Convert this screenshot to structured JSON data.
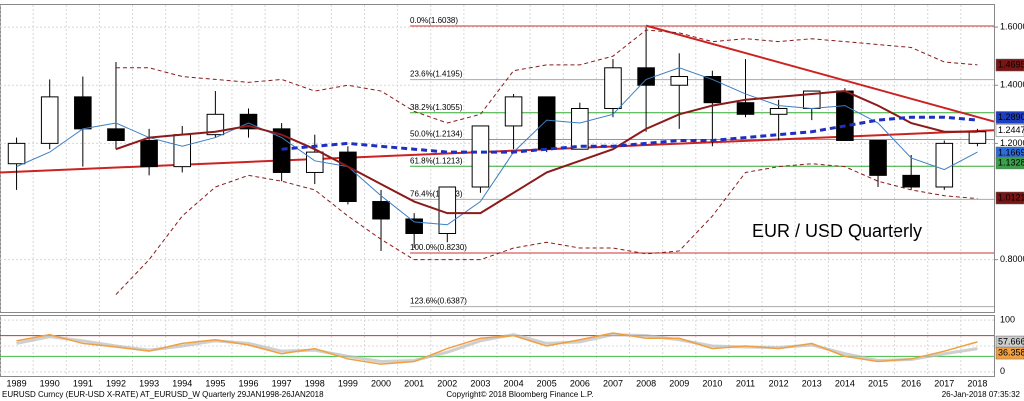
{
  "chart_data": {
    "type": "candlestick",
    "annotation": "EUR / USD Quarterly",
    "footer_left": "EURUSD Curncy (EUR-USD X-RATE) AT_EURUSD_W  Quarterly 29JAN1998-26JAN2018",
    "footer_center": "Copyright© 2018 Bloomberg Finance L.P.",
    "footer_right": "26-Jan-2018 07:35:32",
    "x": [
      1989,
      1990,
      1991,
      1992,
      1993,
      1994,
      1995,
      1996,
      1997,
      1998,
      1999,
      2000,
      2001,
      2002,
      2003,
      2004,
      2005,
      2006,
      2007,
      2008,
      2009,
      2010,
      2011,
      2012,
      2013,
      2014,
      2015,
      2016,
      2017,
      2018
    ],
    "xlim": [
      1988.5,
      2018.5
    ],
    "ylim": [
      0.62,
      1.676
    ],
    "yticks": [
      {
        "value": 0.8,
        "label": "0.8000"
      },
      {
        "value": 1.2,
        "label": "1.2000"
      },
      {
        "value": 1.4,
        "label": "1.4000"
      },
      {
        "value": 1.6,
        "label": "1.6000"
      }
    ],
    "grid": true,
    "open": [
      1.13,
      1.2,
      1.36,
      1.25,
      1.21,
      1.12,
      1.23,
      1.3,
      1.25,
      1.1,
      1.17,
      1.0,
      0.94,
      0.89,
      1.05,
      1.26,
      1.36,
      1.18,
      1.32,
      1.46,
      1.4,
      1.43,
      1.34,
      1.3,
      1.32,
      1.38,
      1.21,
      1.09,
      1.05,
      1.2
    ],
    "high": [
      1.22,
      1.42,
      1.43,
      1.48,
      1.25,
      1.26,
      1.38,
      1.32,
      1.27,
      1.23,
      1.19,
      1.04,
      0.96,
      1.05,
      1.26,
      1.37,
      1.36,
      1.34,
      1.49,
      1.6,
      1.51,
      1.45,
      1.49,
      1.35,
      1.38,
      1.39,
      1.21,
      1.16,
      1.21,
      1.25
    ],
    "low": [
      1.04,
      1.18,
      1.12,
      1.18,
      1.09,
      1.1,
      1.22,
      1.22,
      1.07,
      1.06,
      0.99,
      0.83,
      0.84,
      0.86,
      1.03,
      1.18,
      1.17,
      1.18,
      1.29,
      1.24,
      1.25,
      1.19,
      1.29,
      1.21,
      1.28,
      1.21,
      1.05,
      1.04,
      1.04,
      1.19
    ],
    "close": [
      1.2,
      1.36,
      1.25,
      1.21,
      1.12,
      1.23,
      1.3,
      1.25,
      1.1,
      1.17,
      1.0,
      0.94,
      0.89,
      1.05,
      1.26,
      1.36,
      1.18,
      1.32,
      1.46,
      1.4,
      1.43,
      1.34,
      1.3,
      1.32,
      1.38,
      1.21,
      1.09,
      1.05,
      1.2,
      1.24
    ],
    "series": [
      {
        "color": "#3b7fc4",
        "dash": false,
        "width": 1,
        "values": [
          1.12,
          1.17,
          1.25,
          1.27,
          1.22,
          1.19,
          1.22,
          1.27,
          1.22,
          1.14,
          1.12,
          1.02,
          0.93,
          0.92,
          1.0,
          1.17,
          1.28,
          1.27,
          1.3,
          1.42,
          1.46,
          1.42,
          1.37,
          1.33,
          1.32,
          1.33,
          1.27,
          1.15,
          1.11,
          1.17
        ]
      },
      {
        "color": "#8b1a1a",
        "dash": false,
        "width": 2,
        "values": [
          null,
          null,
          null,
          1.18,
          1.22,
          1.23,
          1.24,
          1.26,
          1.23,
          1.18,
          1.12,
          1.06,
          1.0,
          0.96,
          0.96,
          1.03,
          1.1,
          1.14,
          1.18,
          1.25,
          1.3,
          1.33,
          1.35,
          1.36,
          1.37,
          1.38,
          1.33,
          1.27,
          1.24,
          1.24
        ]
      },
      {
        "color": "#1f2fc0",
        "dash": true,
        "width": 3,
        "values": [
          null,
          null,
          null,
          null,
          null,
          null,
          null,
          null,
          1.18,
          1.19,
          1.2,
          1.19,
          1.18,
          1.17,
          1.17,
          1.17,
          1.18,
          1.19,
          1.19,
          1.2,
          1.21,
          1.21,
          1.22,
          1.23,
          1.24,
          1.26,
          1.28,
          1.29,
          1.29,
          1.28
        ]
      },
      {
        "color": "#8b1a1a",
        "dash": true,
        "width": 1,
        "values": [
          null,
          null,
          null,
          1.46,
          1.46,
          1.43,
          1.42,
          1.41,
          1.42,
          1.38,
          1.4,
          1.38,
          1.31,
          1.27,
          1.3,
          1.45,
          1.47,
          1.47,
          1.5,
          1.59,
          1.58,
          1.55,
          1.56,
          1.55,
          1.56,
          1.55,
          1.54,
          1.53,
          1.48,
          1.47
        ]
      },
      {
        "color": "#8b1a1a",
        "dash": true,
        "width": 1,
        "values": [
          null,
          null,
          null,
          0.68,
          0.8,
          0.95,
          1.05,
          1.09,
          1.07,
          1.04,
          0.95,
          0.87,
          0.8,
          0.8,
          0.8,
          0.84,
          0.86,
          0.84,
          0.84,
          0.82,
          0.83,
          0.95,
          1.1,
          1.12,
          1.13,
          1.12,
          1.07,
          1.04,
          1.02,
          1.01
        ]
      }
    ],
    "trend_lines": [
      {
        "color": "#cc2222",
        "x": [
          1988.5,
          2018.5
        ],
        "y": [
          1.1,
          1.245
        ]
      },
      {
        "color": "#cc2222",
        "x": [
          2008,
          2018.5
        ],
        "y": [
          1.605,
          1.275
        ]
      }
    ],
    "fib_levels": [
      {
        "value": 1.6038,
        "label": "0.0%(1.6038)",
        "color": "#cc3333"
      },
      {
        "value": 1.4195,
        "label": "23.6%(1.4195)",
        "color": "#aaaaaa"
      },
      {
        "value": 1.3055,
        "label": "38.2%(1.3055)",
        "color": "#33aa33"
      },
      {
        "value": 1.2134,
        "label": "50.0%(1.2134)",
        "color": "#33bbcc"
      },
      {
        "value": 1.1213,
        "label": "61.8%(1.1213)",
        "color": "#33aa33"
      },
      {
        "value": 1.0073,
        "label": "76.4%(1.0073)",
        "color": "#aaaaaa"
      },
      {
        "value": 0.823,
        "label": "100.0%(0.8230)",
        "color": "#cc3333"
      },
      {
        "value": 0.6387,
        "label": "123.6%(0.6387)",
        "color": "#aaaaaa"
      }
    ],
    "price_tags": [
      {
        "value": 1.4695,
        "label": "1.4695",
        "color": "#7b1515",
        "text_color": "#ffffff"
      },
      {
        "value": 1.289,
        "label": "1.2890",
        "color": "#1d3fbf",
        "text_color": "#ffffff"
      },
      {
        "value": 1.2447,
        "label": "1.2447",
        "color": "#ffffff",
        "text_color": "#000000"
      },
      {
        "value": 1.1669,
        "label": "1.1669",
        "color": "#2a6de0",
        "text_color": "#ffffff"
      },
      {
        "value": 1.1328,
        "label": "1.1328",
        "color": "#3aa04a",
        "text_color": "#ffffff"
      },
      {
        "value": 1.0121,
        "label": "1.0121",
        "color": "#7b1515",
        "text_color": "#ffffff"
      }
    ],
    "lower_panel": {
      "ylim": [
        -8,
        108
      ],
      "yticks": [
        0,
        50,
        100
      ],
      "hlines": [
        {
          "value": 70,
          "color": "#cc3333"
        },
        {
          "value": 30,
          "color": "#44bb44"
        }
      ],
      "series": [
        {
          "color": "#bbbbbb",
          "values": [
            55,
            68,
            60,
            50,
            42,
            50,
            60,
            55,
            40,
            42,
            30,
            20,
            22,
            38,
            60,
            72,
            55,
            58,
            72,
            70,
            62,
            50,
            48,
            47,
            52,
            35,
            22,
            24,
            35,
            45
          ]
        },
        {
          "color": "#f0a040",
          "values": [
            60,
            72,
            55,
            48,
            40,
            55,
            62,
            52,
            35,
            45,
            25,
            15,
            20,
            45,
            65,
            70,
            50,
            62,
            75,
            65,
            65,
            45,
            50,
            45,
            55,
            30,
            20,
            25,
            40,
            58
          ]
        }
      ],
      "price_tags": [
        {
          "value": 57.6664,
          "label": "57.6664",
          "color": "#cccccc",
          "text_color": "#000000"
        },
        {
          "value": 36.358,
          "label": "36.358",
          "color": "#f0a040",
          "text_color": "#000000"
        }
      ]
    }
  }
}
